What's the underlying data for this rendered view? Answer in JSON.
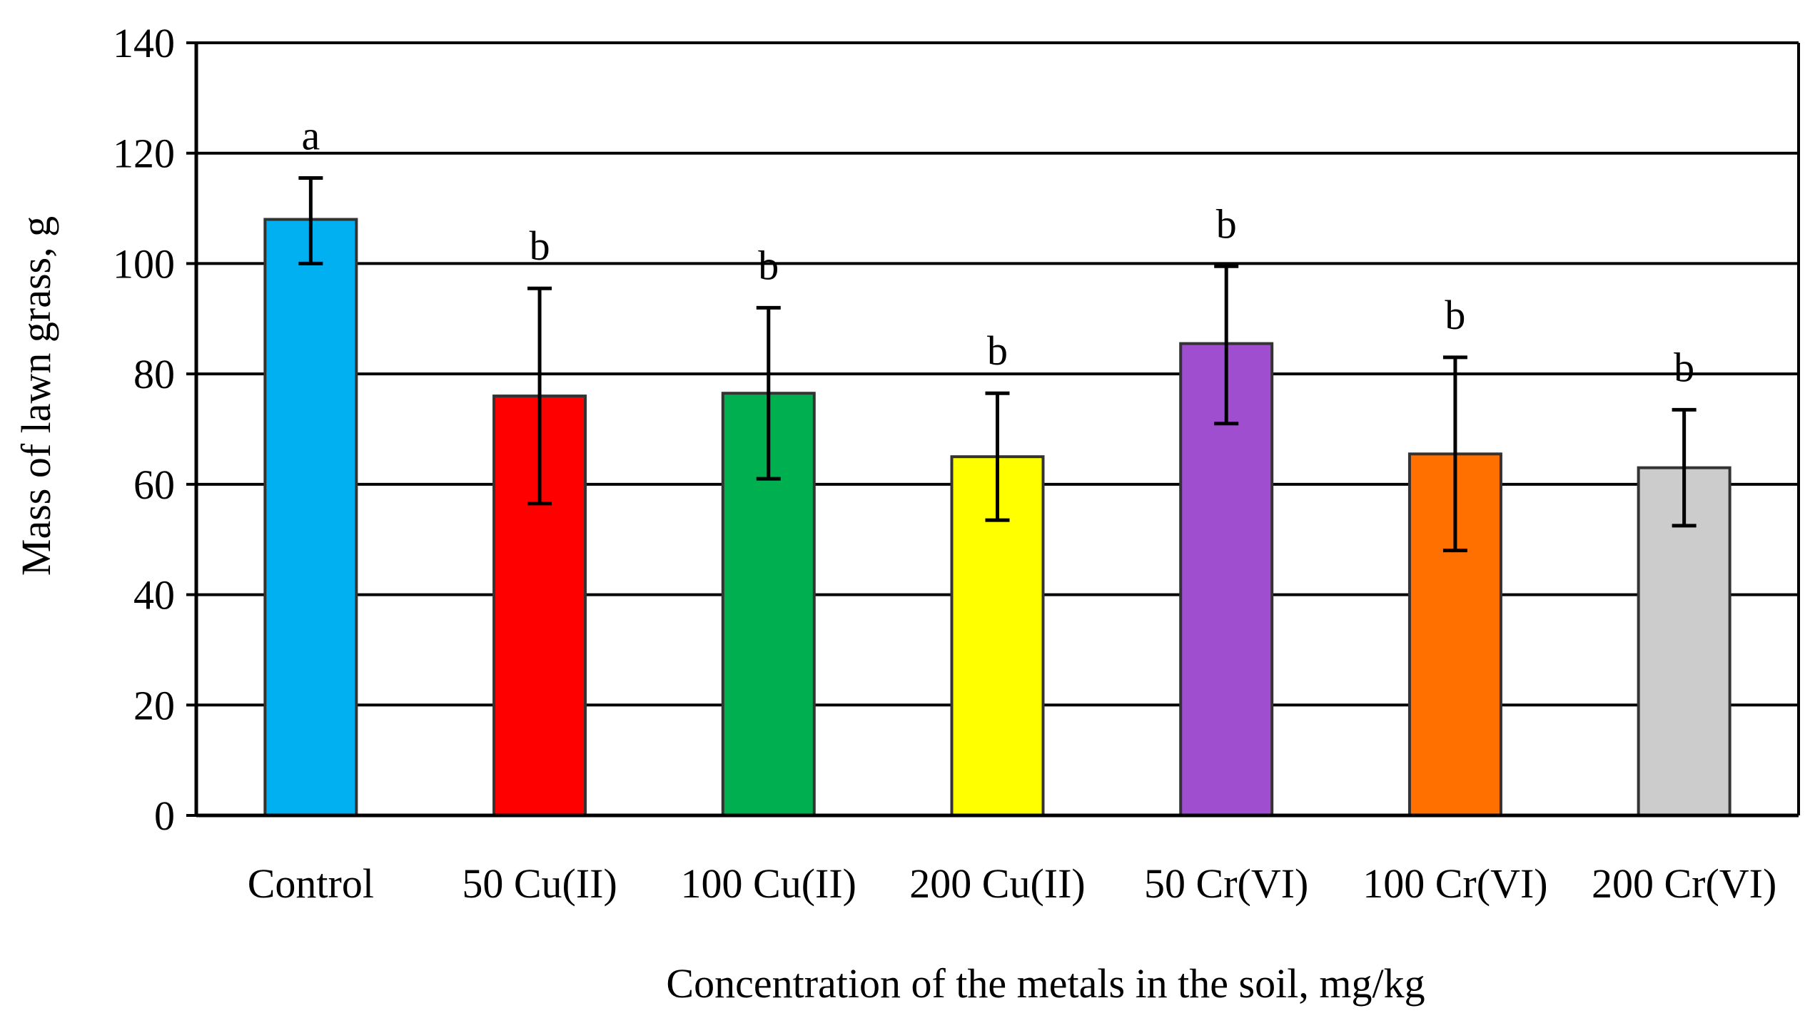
{
  "chart_data": {
    "type": "bar",
    "title": "",
    "xlabel": "Concentration of the metals in the soil, mg/kg",
    "ylabel": "Mass of lawn grass, g",
    "ylim": [
      0,
      140
    ],
    "yticks": [
      0,
      20,
      40,
      60,
      80,
      100,
      120,
      140
    ],
    "grid": true,
    "legend": "none",
    "categories": [
      "Control",
      "50 Cu(II)",
      "100 Cu(II)",
      "200 Cu(II)",
      "50 Cr(VI)",
      "100 Cr(VI)",
      "200 Cr(VI)"
    ],
    "values": [
      108,
      76,
      76.5,
      65,
      85.5,
      65.5,
      63
    ],
    "error_low": [
      100,
      56.5,
      61,
      53.5,
      71,
      48,
      52.5
    ],
    "error_high": [
      115.5,
      95.5,
      92,
      76.5,
      99.5,
      83,
      73.5
    ],
    "significance_letters": [
      "a",
      "b",
      "b",
      "b",
      "b",
      "b",
      "b"
    ],
    "colors": [
      "#00B0F0",
      "#FF0000",
      "#00B050",
      "#FFFF00",
      "#A04ED0",
      "#FF7000",
      "#CCCCCC"
    ]
  }
}
